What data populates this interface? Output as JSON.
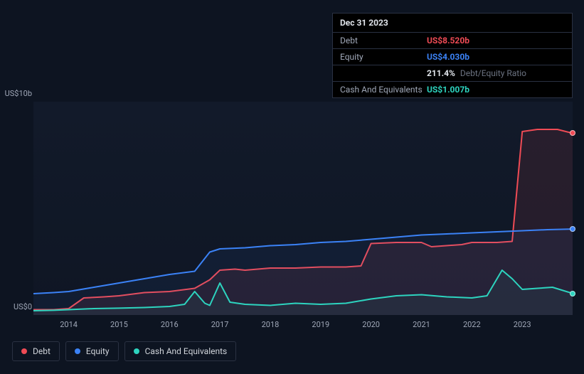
{
  "tooltip": {
    "date": "Dec 31 2023",
    "rows": [
      {
        "label": "Debt",
        "value": "US$8.520b",
        "color": "#ef4b55"
      },
      {
        "label": "Equity",
        "value": "US$4.030b",
        "color": "#3b82f6"
      },
      {
        "label": "",
        "pct": "211.4%",
        "ratio_label": "Debt/Equity Ratio"
      },
      {
        "label": "Cash And Equivalents",
        "value": "US$1.007b",
        "color": "#2dd4bf"
      }
    ]
  },
  "chart": {
    "type": "line",
    "y_labels": {
      "top": "US$10b",
      "bottom": "US$0"
    },
    "ylim": [
      0,
      10
    ],
    "x_categories": [
      "2014",
      "2015",
      "2016",
      "2017",
      "2018",
      "2019",
      "2020",
      "2021",
      "2022",
      "2023"
    ],
    "x_domain": [
      2013.3,
      2024.0
    ],
    "background_color": "#121a2a",
    "grid_color": "#1a2234",
    "line_width": 2,
    "series": [
      {
        "name": "Debt",
        "color": "#ef4b55",
        "fill_opacity": 0.1,
        "data": [
          [
            2013.3,
            0.25
          ],
          [
            2013.7,
            0.25
          ],
          [
            2014.0,
            0.3
          ],
          [
            2014.3,
            0.8
          ],
          [
            2014.7,
            0.85
          ],
          [
            2015.0,
            0.9
          ],
          [
            2015.5,
            1.05
          ],
          [
            2016.0,
            1.1
          ],
          [
            2016.5,
            1.25
          ],
          [
            2016.8,
            1.65
          ],
          [
            2017.0,
            2.1
          ],
          [
            2017.3,
            2.15
          ],
          [
            2017.5,
            2.1
          ],
          [
            2018.0,
            2.2
          ],
          [
            2018.5,
            2.2
          ],
          [
            2019.0,
            2.25
          ],
          [
            2019.5,
            2.25
          ],
          [
            2019.8,
            2.3
          ],
          [
            2020.0,
            3.35
          ],
          [
            2020.5,
            3.4
          ],
          [
            2021.0,
            3.4
          ],
          [
            2021.2,
            3.2
          ],
          [
            2021.8,
            3.3
          ],
          [
            2022.0,
            3.4
          ],
          [
            2022.5,
            3.4
          ],
          [
            2022.8,
            3.45
          ],
          [
            2023.0,
            8.6
          ],
          [
            2023.3,
            8.7
          ],
          [
            2023.7,
            8.7
          ],
          [
            2024.0,
            8.52
          ]
        ]
      },
      {
        "name": "Equity",
        "color": "#3b82f6",
        "fill_opacity": 0.07,
        "data": [
          [
            2013.3,
            1.0
          ],
          [
            2013.7,
            1.05
          ],
          [
            2014.0,
            1.1
          ],
          [
            2014.5,
            1.3
          ],
          [
            2015.0,
            1.5
          ],
          [
            2015.5,
            1.7
          ],
          [
            2016.0,
            1.9
          ],
          [
            2016.5,
            2.05
          ],
          [
            2016.8,
            2.95
          ],
          [
            2017.0,
            3.1
          ],
          [
            2017.5,
            3.15
          ],
          [
            2018.0,
            3.25
          ],
          [
            2018.5,
            3.3
          ],
          [
            2019.0,
            3.4
          ],
          [
            2019.5,
            3.45
          ],
          [
            2020.0,
            3.55
          ],
          [
            2020.5,
            3.65
          ],
          [
            2021.0,
            3.75
          ],
          [
            2021.5,
            3.8
          ],
          [
            2022.0,
            3.85
          ],
          [
            2022.5,
            3.9
          ],
          [
            2023.0,
            3.95
          ],
          [
            2023.5,
            4.0
          ],
          [
            2024.0,
            4.03
          ]
        ]
      },
      {
        "name": "Cash And Equivalents",
        "color": "#2dd4bf",
        "fill_opacity": 0.06,
        "data": [
          [
            2013.3,
            0.2
          ],
          [
            2013.7,
            0.22
          ],
          [
            2014.0,
            0.25
          ],
          [
            2014.5,
            0.3
          ],
          [
            2015.0,
            0.32
          ],
          [
            2015.5,
            0.35
          ],
          [
            2016.0,
            0.4
          ],
          [
            2016.3,
            0.5
          ],
          [
            2016.5,
            1.1
          ],
          [
            2016.7,
            0.55
          ],
          [
            2016.8,
            0.45
          ],
          [
            2017.0,
            1.5
          ],
          [
            2017.2,
            0.6
          ],
          [
            2017.5,
            0.5
          ],
          [
            2018.0,
            0.45
          ],
          [
            2018.5,
            0.55
          ],
          [
            2019.0,
            0.5
          ],
          [
            2019.5,
            0.55
          ],
          [
            2020.0,
            0.75
          ],
          [
            2020.5,
            0.9
          ],
          [
            2021.0,
            0.95
          ],
          [
            2021.5,
            0.85
          ],
          [
            2022.0,
            0.8
          ],
          [
            2022.3,
            0.9
          ],
          [
            2022.6,
            2.1
          ],
          [
            2022.8,
            1.7
          ],
          [
            2023.0,
            1.2
          ],
          [
            2023.3,
            1.25
          ],
          [
            2023.6,
            1.3
          ],
          [
            2024.0,
            1.01
          ]
        ]
      }
    ]
  },
  "legend": [
    {
      "label": "Debt",
      "color": "#ef4b55"
    },
    {
      "label": "Equity",
      "color": "#3b82f6"
    },
    {
      "label": "Cash And Equivalents",
      "color": "#2dd4bf"
    }
  ]
}
